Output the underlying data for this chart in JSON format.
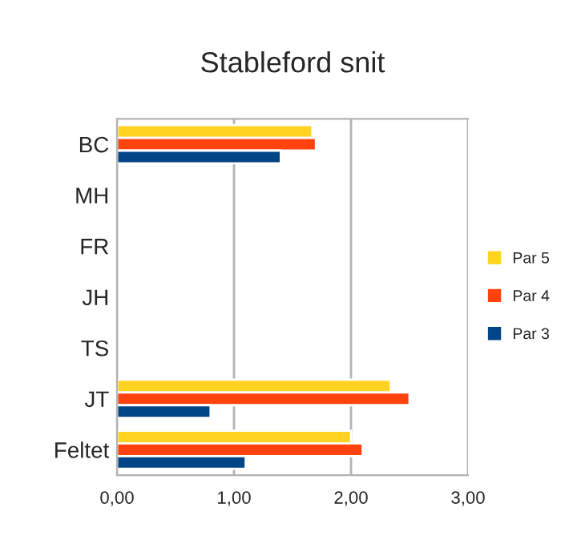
{
  "chart_data": {
    "type": "bar",
    "orientation": "horizontal",
    "title": "Stableford snit",
    "categories": [
      "BC",
      "MH",
      "FR",
      "JH",
      "TS",
      "JT",
      "Feltet"
    ],
    "series": [
      {
        "name": "Par 5",
        "color": "#ffd320",
        "values": [
          1.67,
          null,
          null,
          null,
          null,
          2.34,
          2.0
        ]
      },
      {
        "name": "Par 4",
        "color": "#ff420e",
        "values": [
          1.7,
          null,
          null,
          null,
          null,
          2.5,
          2.1
        ]
      },
      {
        "name": "Par 3",
        "color": "#004586",
        "values": [
          1.4,
          null,
          null,
          null,
          null,
          0.8,
          1.1
        ]
      }
    ],
    "xlim": [
      0,
      3
    ],
    "xticks": [
      {
        "value": 0,
        "label": "0,00"
      },
      {
        "value": 1,
        "label": "1,00"
      },
      {
        "value": 2,
        "label": "2,00"
      },
      {
        "value": 3,
        "label": "3,00"
      }
    ],
    "grid": "x",
    "legend": "right"
  }
}
